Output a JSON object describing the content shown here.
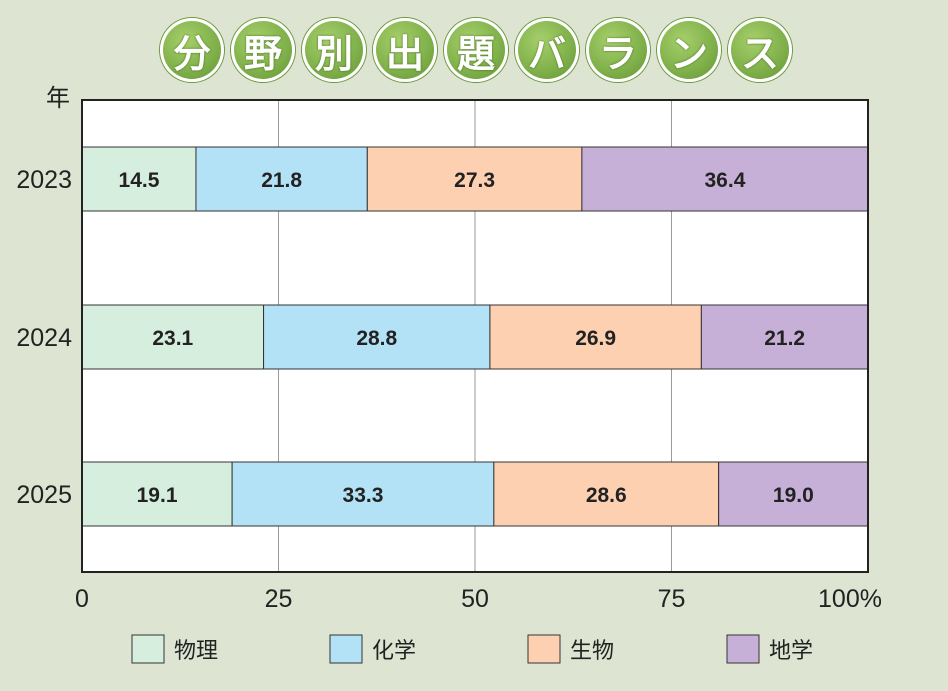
{
  "title_chars": [
    "分",
    "野",
    "別",
    "出",
    "題",
    "バ",
    "ラ",
    "ン",
    "ス"
  ],
  "chart_data": {
    "type": "bar",
    "orientation": "horizontal",
    "stacked": true,
    "title": "分野別出題バランス",
    "ylabel": "年",
    "categories": [
      "2023",
      "2024",
      "2025"
    ],
    "xlim": [
      0,
      100
    ],
    "xticks": [
      "0",
      "25",
      "50",
      "75",
      "100%"
    ],
    "xtick_values": [
      0,
      25,
      50,
      75,
      100
    ],
    "grid": true,
    "legend_position": "bottom",
    "series": [
      {
        "name": "物理",
        "values": [
          14.5,
          23.1,
          19.1
        ],
        "labels": [
          "14.5",
          "23.1",
          "19.1"
        ],
        "color": "#d5eedd"
      },
      {
        "name": "化学",
        "values": [
          21.8,
          28.8,
          33.3
        ],
        "labels": [
          "21.8",
          "28.8",
          "33.3"
        ],
        "color": "#b3e2f7"
      },
      {
        "name": "生物",
        "values": [
          27.3,
          26.9,
          28.6
        ],
        "labels": [
          "27.3",
          "26.9",
          "28.6"
        ],
        "color": "#fdd0b2"
      },
      {
        "name": "地学",
        "values": [
          36.4,
          21.2,
          19.0
        ],
        "labels": [
          "36.4",
          "21.2",
          "19.0"
        ],
        "color": "#c7b0d8"
      }
    ]
  }
}
